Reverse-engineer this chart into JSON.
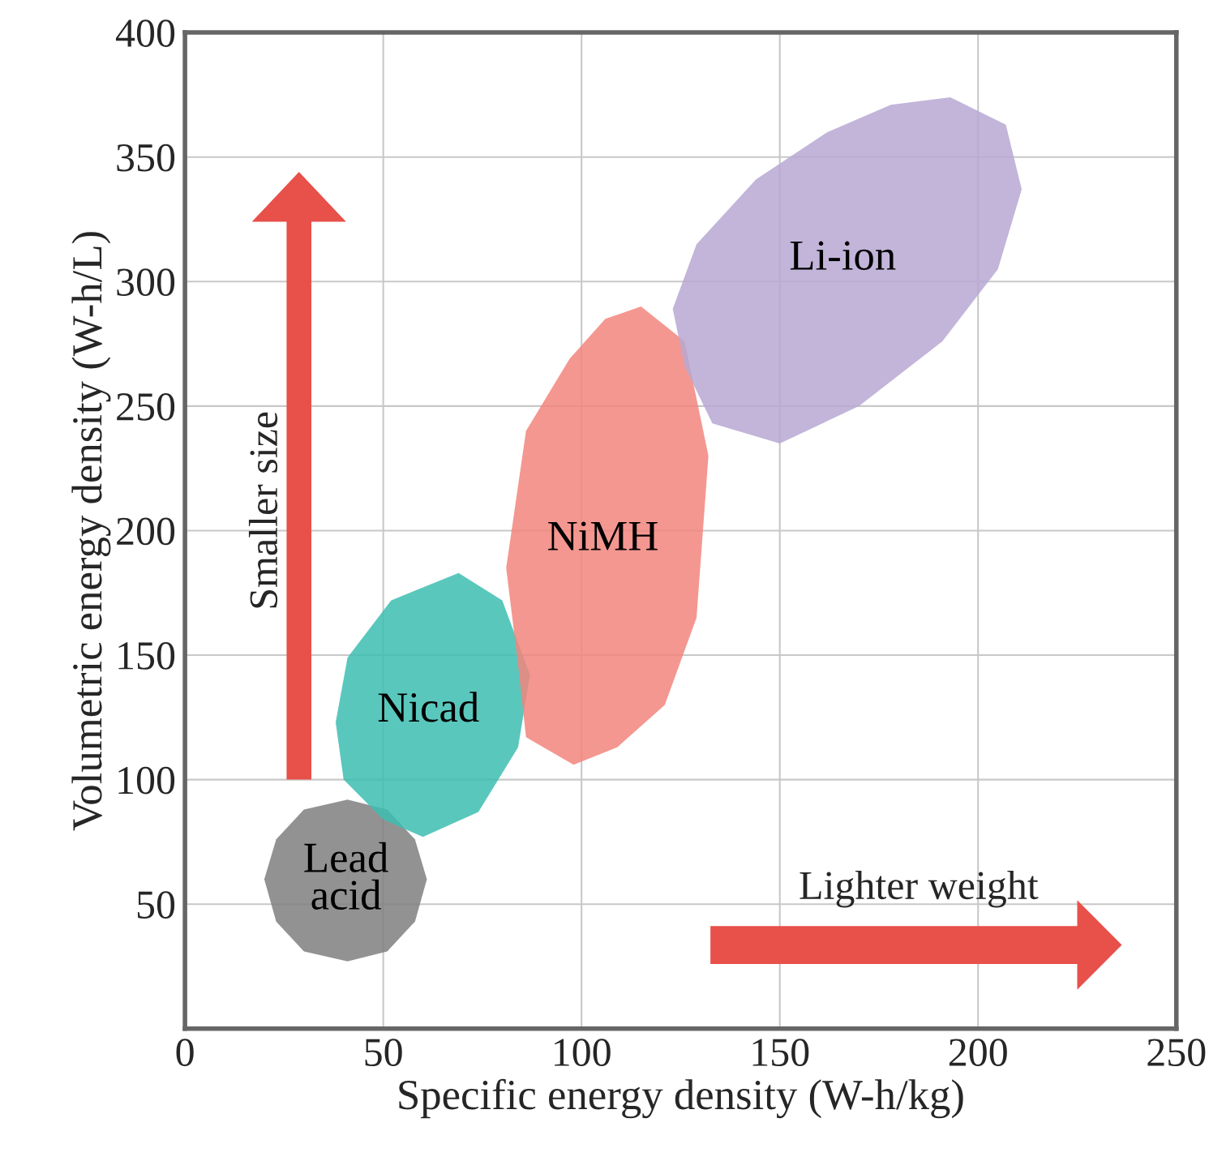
{
  "chart_data": {
    "type": "area",
    "xlabel": "Specific energy density (W-h/kg)",
    "ylabel": "Volumetric energy density (W-h/L)",
    "xlim": [
      0,
      250
    ],
    "ylim": [
      0,
      400
    ],
    "xticks": [
      0,
      50,
      100,
      150,
      200,
      250
    ],
    "yticks": [
      50,
      100,
      150,
      200,
      250,
      300,
      350,
      400
    ],
    "grid": true,
    "series": [
      {
        "name": "Lead\nacid",
        "color": "#7f7f7f",
        "x": [
          61,
          58,
          51,
          41,
          30,
          23,
          20,
          23,
          30,
          41,
          51,
          58
        ],
        "values": [
          60,
          76,
          88,
          92,
          88,
          76,
          60,
          43,
          31,
          27,
          31,
          43
        ]
      },
      {
        "name": "Nicad",
        "color": "#3dbdb1",
        "x": [
          69,
          80,
          87,
          84,
          74,
          60,
          50,
          40,
          38,
          41,
          52
        ],
        "values": [
          183,
          172,
          142,
          113,
          87,
          77,
          84,
          100,
          123,
          149,
          172
        ]
      },
      {
        "name": "NiMH",
        "color": "#f2857d",
        "x": [
          115,
          126,
          132,
          129,
          121,
          109,
          98,
          86,
          84,
          81,
          86,
          97,
          106
        ],
        "values": [
          290,
          276,
          230,
          165,
          130,
          113,
          106,
          117,
          146,
          185,
          240,
          269,
          285
        ]
      },
      {
        "name": "Li-ion",
        "color": "#b7a8d2",
        "x": [
          193,
          207,
          211,
          205,
          191,
          170,
          150,
          133,
          126,
          123,
          129,
          144,
          162,
          178
        ],
        "values": [
          374,
          363,
          337,
          305,
          276,
          250,
          235,
          243,
          266,
          289,
          315,
          341,
          360,
          371
        ]
      }
    ],
    "annotations": [
      "Smaller size",
      "Lighter weight"
    ]
  }
}
